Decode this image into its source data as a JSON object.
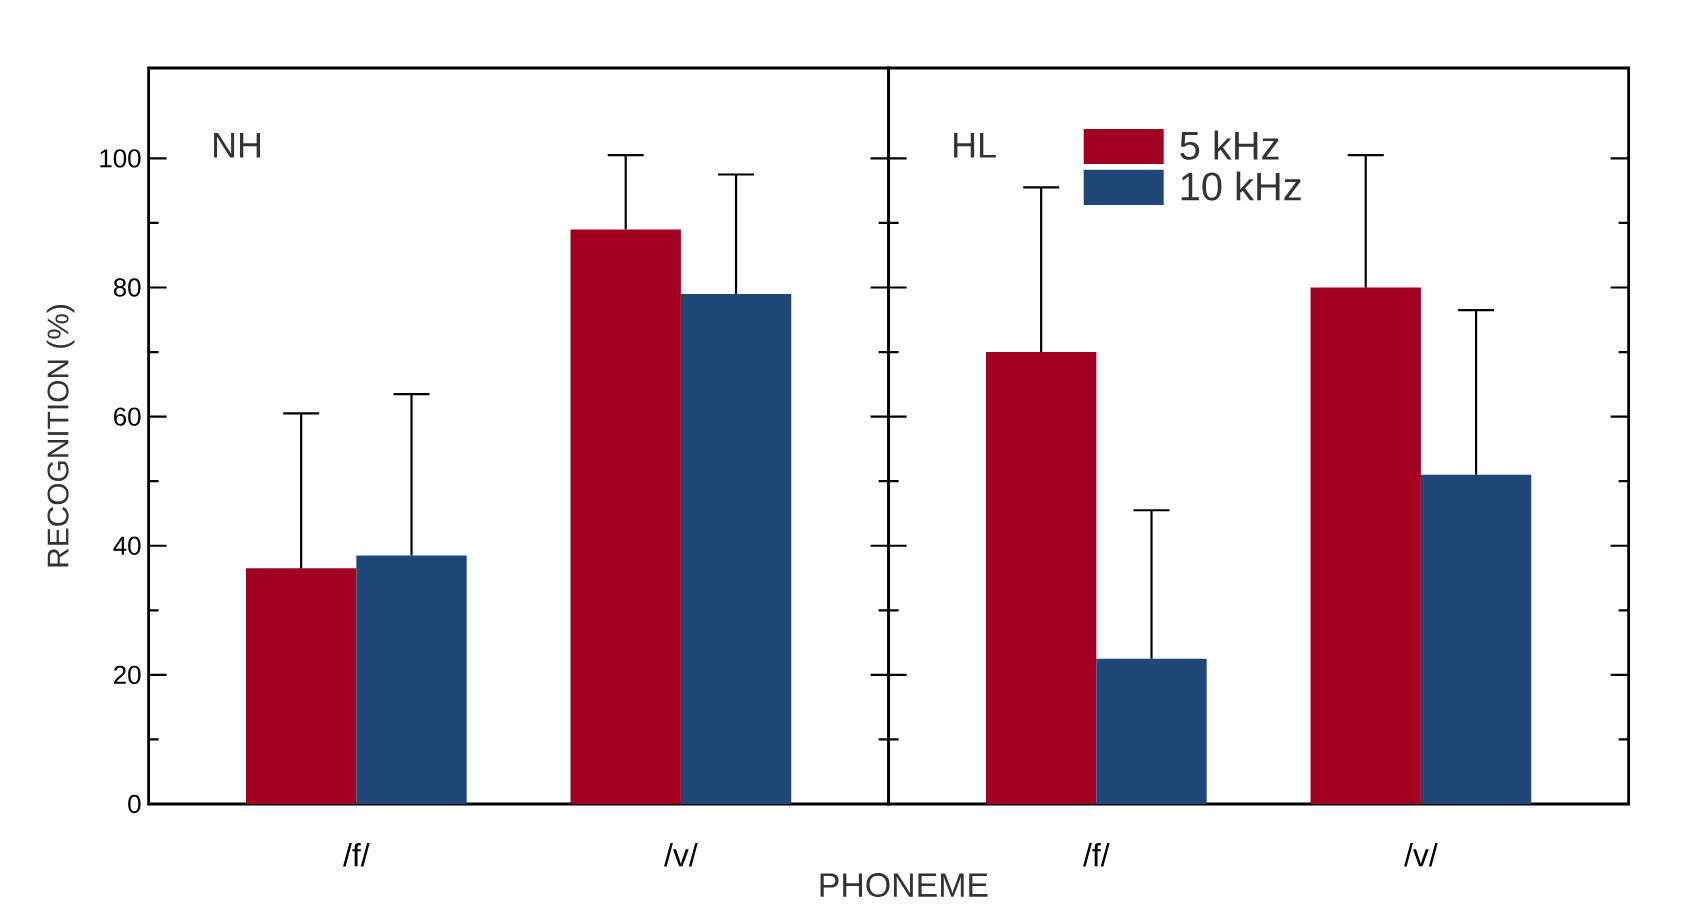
{
  "chart_data": [
    {
      "type": "bar",
      "title": "NH",
      "ylabel": "RECOGNITION (%)",
      "xlabel": "PHONEME",
      "categories": [
        "/f/",
        "/v/"
      ],
      "series": [
        {
          "color": "#a30021",
          "values": [
            36.5,
            89
          ],
          "errors": [
            [
              36.5,
              60.5
            ],
            [
              89,
              100.5
            ]
          ]
        },
        {
          "color": "#1f4778",
          "values": [
            38.5,
            79
          ],
          "errors": [
            [
              38.5,
              63.5
            ],
            [
              79,
              97.5
            ]
          ]
        }
      ],
      "ylim": [
        0,
        114
      ],
      "yticks": [
        0,
        {
          "value": 10,
          "label": null
        },
        20,
        {
          "value": 30,
          "label": null
        },
        40,
        {
          "value": 50,
          "label": null
        },
        60,
        {
          "value": 70,
          "label": null
        },
        80,
        {
          "value": 90,
          "label": null
        },
        100
      ]
    },
    {
      "type": "bar",
      "title": "HL",
      "categories": [
        "/f/",
        "/v/"
      ],
      "series": [
        {
          "name": "5 kHz",
          "color": "#a30021",
          "values": [
            70,
            80
          ],
          "errors": [
            [
              70,
              95.5
            ],
            [
              80,
              100.5
            ]
          ]
        },
        {
          "name": "10 kHz",
          "color": "#1f4778",
          "values": [
            22.5,
            51
          ],
          "errors": [
            [
              22.5,
              45.5
            ],
            [
              51,
              76.5
            ]
          ]
        }
      ],
      "ylim": [
        0,
        114
      ],
      "yticks": [
        0,
        {
          "value": 10,
          "label": null
        },
        20,
        {
          "value": 30,
          "label": null
        },
        40,
        {
          "value": 50,
          "label": null
        },
        60,
        {
          "value": 70,
          "label": null
        },
        80,
        {
          "value": 90,
          "label": null
        },
        100
      ],
      "legend": "top",
      "tick_labels": "x"
    }
  ]
}
